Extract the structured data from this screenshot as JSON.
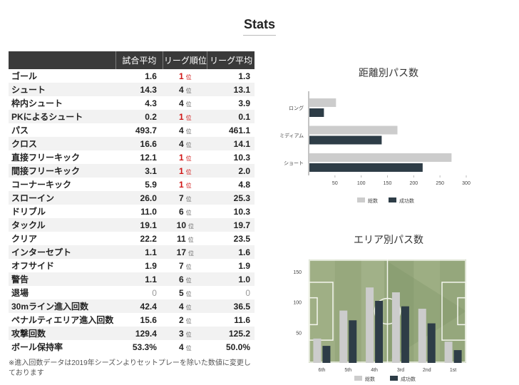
{
  "title": "Stats",
  "table": {
    "headers": [
      "",
      "試合平均",
      "リーグ順位",
      "リーグ平均"
    ],
    "rank_unit": "位",
    "rows": [
      {
        "name": "ゴール",
        "avg": "1.6",
        "rank": "1",
        "league_avg": "1.3"
      },
      {
        "name": "シュート",
        "avg": "14.3",
        "rank": "4",
        "league_avg": "13.1"
      },
      {
        "name": "枠内シュート",
        "avg": "4.3",
        "rank": "4",
        "league_avg": "3.9"
      },
      {
        "name": "PKによるシュート",
        "avg": "0.2",
        "rank": "1",
        "league_avg": "0.1"
      },
      {
        "name": "パス",
        "avg": "493.7",
        "rank": "4",
        "league_avg": "461.1"
      },
      {
        "name": "クロス",
        "avg": "16.6",
        "rank": "4",
        "league_avg": "14.1"
      },
      {
        "name": "直接フリーキック",
        "avg": "12.1",
        "rank": "1",
        "league_avg": "10.3"
      },
      {
        "name": "間接フリーキック",
        "avg": "3.1",
        "rank": "1",
        "league_avg": "2.0"
      },
      {
        "name": "コーナーキック",
        "avg": "5.9",
        "rank": "1",
        "league_avg": "4.8"
      },
      {
        "name": "スローイン",
        "avg": "26.0",
        "rank": "7",
        "league_avg": "25.3"
      },
      {
        "name": "ドリブル",
        "avg": "11.0",
        "rank": "6",
        "league_avg": "10.3"
      },
      {
        "name": "タックル",
        "avg": "19.1",
        "rank": "10",
        "league_avg": "19.7"
      },
      {
        "name": "クリア",
        "avg": "22.2",
        "rank": "11",
        "league_avg": "23.5"
      },
      {
        "name": "インターセプト",
        "avg": "1.1",
        "rank": "17",
        "league_avg": "1.6"
      },
      {
        "name": "オフサイド",
        "avg": "1.9",
        "rank": "7",
        "league_avg": "1.9"
      },
      {
        "name": "警告",
        "avg": "1.1",
        "rank": "6",
        "league_avg": "1.0"
      },
      {
        "name": "退場",
        "avg": "0",
        "rank": "5",
        "league_avg": "0"
      },
      {
        "name": "30mライン進入回数",
        "avg": "42.4",
        "rank": "4",
        "league_avg": "36.5"
      },
      {
        "name": "ペナルティエリア進入回数",
        "avg": "15.6",
        "rank": "2",
        "league_avg": "11.6"
      },
      {
        "name": "攻撃回数",
        "avg": "129.4",
        "rank": "3",
        "league_avg": "125.2"
      },
      {
        "name": "ボール保持率",
        "avg": "53.3%",
        "rank": "4",
        "league_avg": "50.0%"
      }
    ]
  },
  "footnote": "※進入回数データは2019年シーズンよりセットプレーを除いた数値に変更しております",
  "colors": {
    "total": "#cccccc",
    "success": "#2e3d47",
    "rank_top": "#d01515",
    "header_bg": "#3a3a3a"
  },
  "chart_data": [
    {
      "type": "bar",
      "orientation": "horizontal",
      "title": "距離別パス数",
      "categories": [
        "ロング",
        "ミディアム",
        "ショート"
      ],
      "series": [
        {
          "name": "総数",
          "values": [
            52,
            169,
            272
          ]
        },
        {
          "name": "成功数",
          "values": [
            29,
            139,
            217
          ]
        }
      ],
      "xlim": [
        0,
        300
      ],
      "xticks": [
        50,
        100,
        150,
        200,
        250,
        300
      ],
      "legend": "bottom"
    },
    {
      "type": "bar",
      "title": "エリア別パス数",
      "categories": [
        "6th",
        "5th",
        "4th",
        "3rd",
        "2nd",
        "1st"
      ],
      "series": [
        {
          "name": "総数",
          "values": [
            40,
            86,
            124,
            116,
            89,
            35
          ]
        },
        {
          "name": "成功数",
          "values": [
            28,
            70,
            102,
            93,
            65,
            21
          ]
        }
      ],
      "ylim": [
        0,
        150
      ],
      "yticks": [
        50,
        100,
        150
      ],
      "background": "football-pitch",
      "legend": "bottom"
    }
  ]
}
